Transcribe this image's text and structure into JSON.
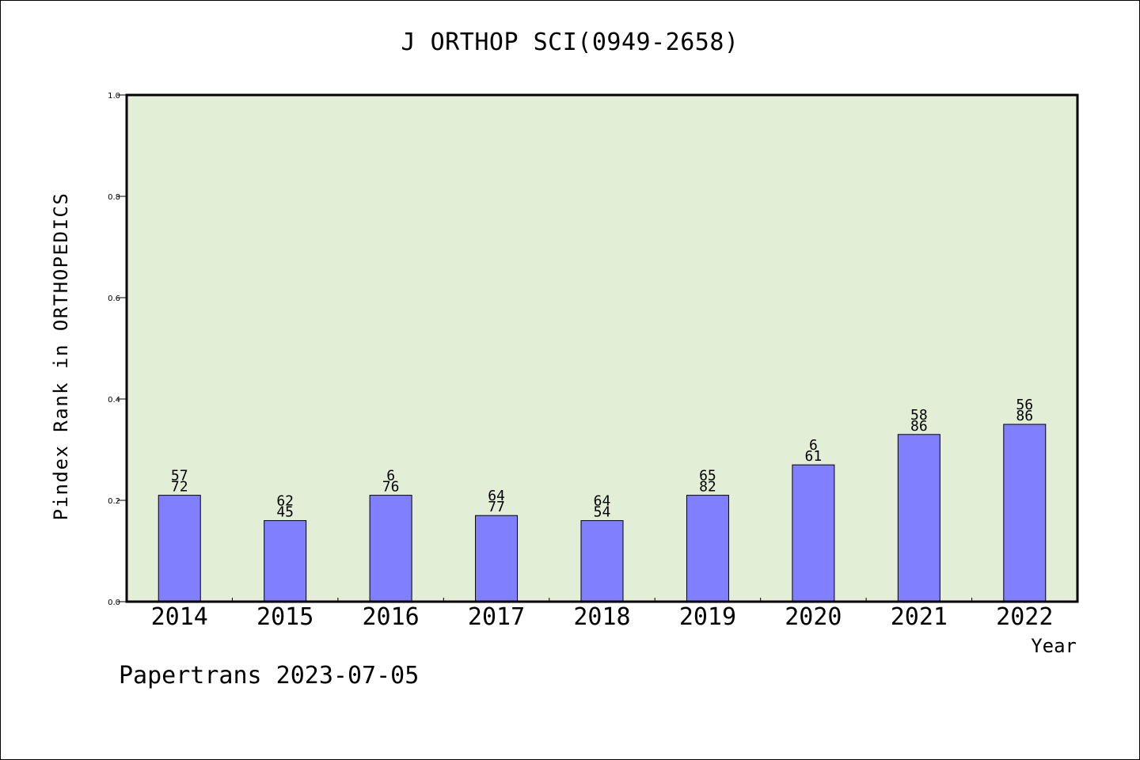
{
  "chart_data": {
    "type": "bar",
    "title": "J ORTHOP SCI(0949-2658)",
    "xlabel": "Year",
    "ylabel": "Pindex Rank in ORTHOPEDICS",
    "categories": [
      "2014",
      "2015",
      "2016",
      "2017",
      "2018",
      "2019",
      "2020",
      "2021",
      "2022"
    ],
    "values": [
      0.21,
      0.16,
      0.21,
      0.17,
      0.16,
      0.21,
      0.27,
      0.33,
      0.35
    ],
    "bar_labels_top": [
      "57",
      "62",
      "6",
      "64",
      "64",
      "65",
      "6",
      "58",
      "56"
    ],
    "bar_labels_bottom": [
      "72",
      "45",
      "76",
      "77",
      "54",
      "82",
      "61",
      "86",
      "86"
    ],
    "ylim": [
      0,
      1.0
    ],
    "yticks": [
      "0.0",
      "0.2",
      "0.4",
      "0.6",
      "0.8",
      "1.0"
    ],
    "grid": false,
    "legend": "none",
    "bar_color": "#8080ff",
    "plot_background": "#e2efd6"
  },
  "footer": "Papertrans 2023-07-05"
}
